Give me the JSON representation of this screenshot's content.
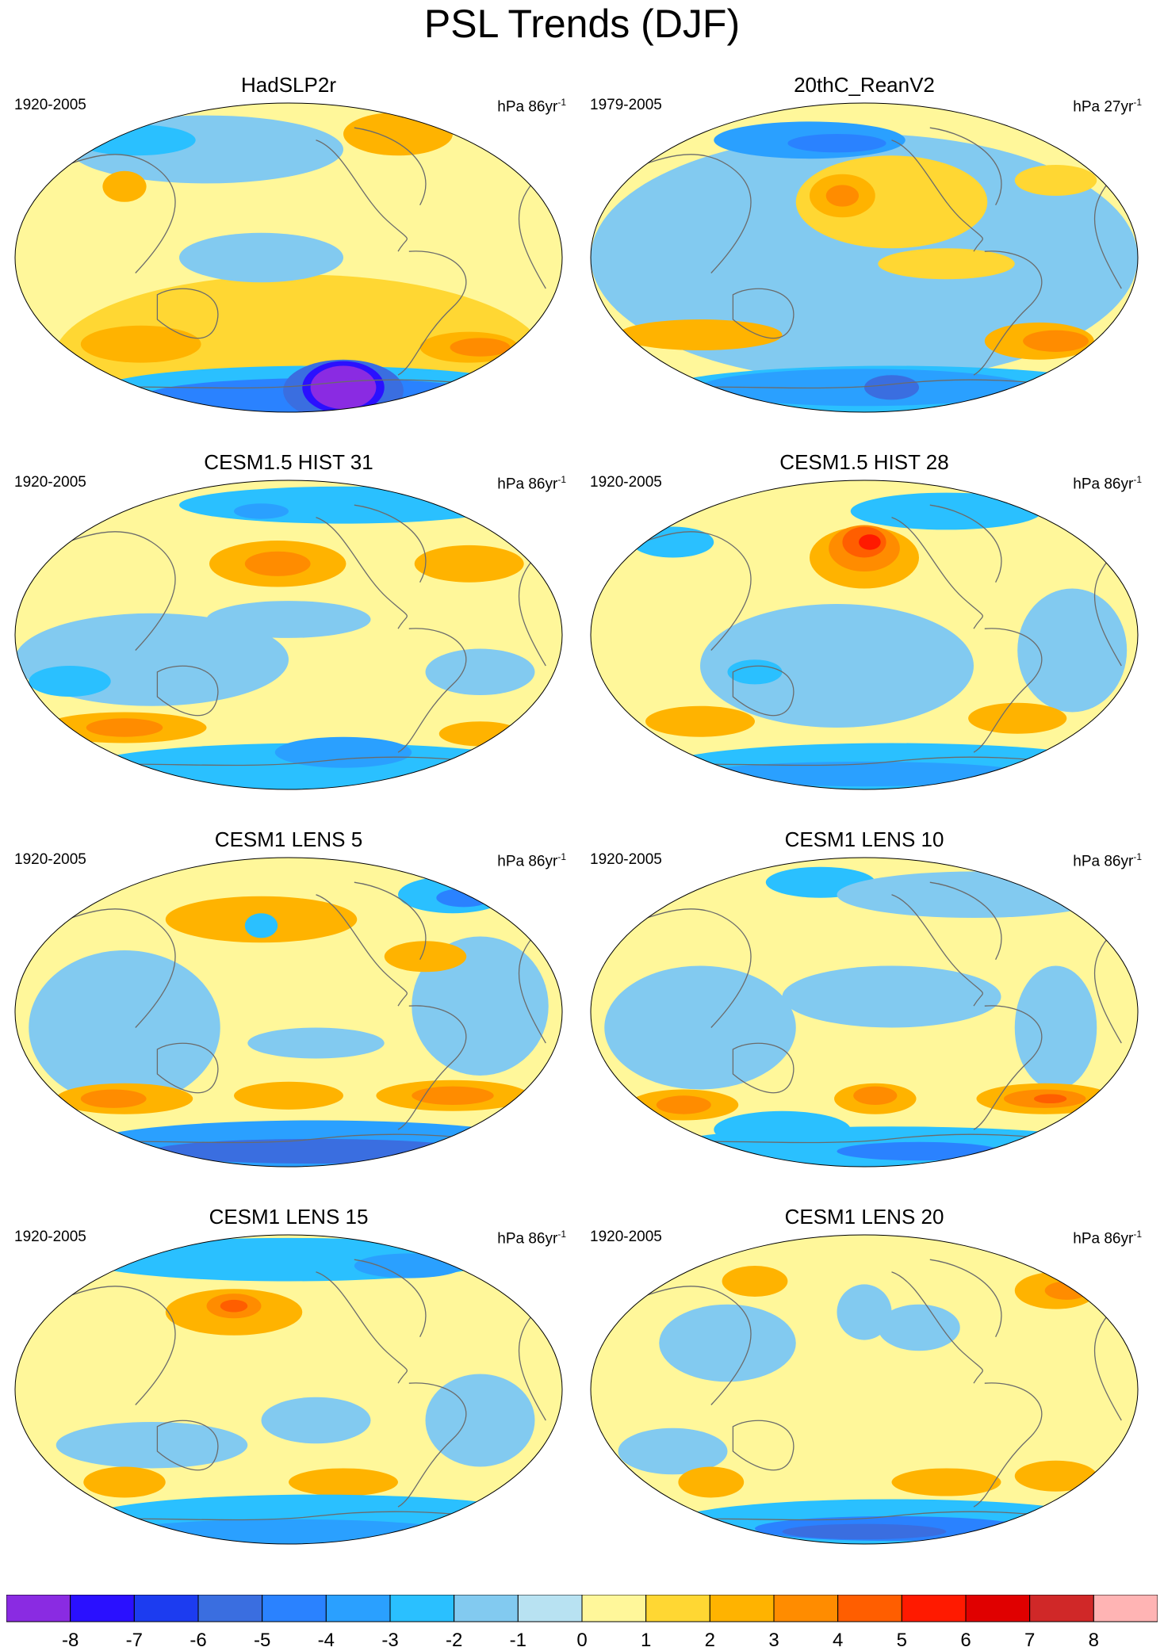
{
  "title": "PSL Trends (DJF)",
  "panels": [
    {
      "title": "HadSLP2r",
      "years": "1920-2005",
      "units": "hPa 86yr",
      "exp": "-1",
      "blobs": [
        [
          "1",
          0.52,
          0.83,
          0.9,
          0.55
        ],
        [
          "3",
          0.22,
          0.78,
          0.16,
          0.08
        ],
        [
          "2",
          0.23,
          0.78,
          0.22,
          0.12
        ],
        [
          "2",
          0.83,
          0.79,
          0.18,
          0.1
        ],
        [
          "3",
          0.85,
          0.79,
          0.11,
          0.06
        ],
        [
          "2",
          0.7,
          0.1,
          0.2,
          0.14
        ],
        [
          "-2",
          0.55,
          0.93,
          0.8,
          0.16
        ],
        [
          "-4",
          0.56,
          0.95,
          0.65,
          0.12
        ],
        [
          "-5",
          0.6,
          0.93,
          0.22,
          0.2
        ],
        [
          "-7",
          0.6,
          0.92,
          0.15,
          0.17
        ],
        [
          "-8",
          0.6,
          0.92,
          0.12,
          0.14
        ],
        [
          "-1",
          0.35,
          0.15,
          0.5,
          0.22
        ],
        [
          "-2",
          0.22,
          0.12,
          0.22,
          0.1
        ],
        [
          "-1",
          0.45,
          0.5,
          0.3,
          0.16
        ],
        [
          "2",
          0.2,
          0.27,
          0.08,
          0.1
        ]
      ]
    },
    {
      "title": "20thC_ReanV2",
      "years": "1979-2005",
      "units": "hPa 27yr",
      "exp": "-1",
      "blobs": [
        [
          "-1",
          0.5,
          0.5,
          1.0,
          0.8
        ],
        [
          "1",
          0.55,
          0.32,
          0.35,
          0.3
        ],
        [
          "2",
          0.46,
          0.3,
          0.12,
          0.14
        ],
        [
          "3",
          0.46,
          0.3,
          0.06,
          0.07
        ],
        [
          "2",
          0.2,
          0.75,
          0.3,
          0.1
        ],
        [
          "2",
          0.82,
          0.77,
          0.2,
          0.12
        ],
        [
          "3",
          0.85,
          0.77,
          0.12,
          0.07
        ],
        [
          "-2",
          0.55,
          0.93,
          0.85,
          0.16
        ],
        [
          "-3",
          0.5,
          0.92,
          0.6,
          0.12
        ],
        [
          "-5",
          0.55,
          0.92,
          0.1,
          0.08
        ],
        [
          "-3",
          0.4,
          0.12,
          0.35,
          0.12
        ],
        [
          "-4",
          0.45,
          0.13,
          0.18,
          0.06
        ],
        [
          "1",
          0.85,
          0.25,
          0.15,
          0.1
        ],
        [
          "1",
          0.65,
          0.52,
          0.25,
          0.1
        ]
      ]
    },
    {
      "title": "CESM1.5 HIST 31",
      "years": "1920-2005",
      "units": "hPa 86yr",
      "exp": "-1",
      "blobs": [
        [
          "-1",
          0.25,
          0.58,
          0.5,
          0.3
        ],
        [
          "-2",
          0.1,
          0.65,
          0.15,
          0.1
        ],
        [
          "-1",
          0.85,
          0.62,
          0.2,
          0.15
        ],
        [
          "2",
          0.48,
          0.27,
          0.25,
          0.15
        ],
        [
          "3",
          0.48,
          0.27,
          0.12,
          0.08
        ],
        [
          "2",
          0.83,
          0.27,
          0.2,
          0.12
        ],
        [
          "2",
          0.2,
          0.8,
          0.3,
          0.1
        ],
        [
          "3",
          0.2,
          0.8,
          0.14,
          0.06
        ],
        [
          "2",
          0.85,
          0.82,
          0.15,
          0.08
        ],
        [
          "-2",
          0.55,
          0.93,
          0.85,
          0.16
        ],
        [
          "-3",
          0.6,
          0.88,
          0.25,
          0.1
        ],
        [
          "-2",
          0.6,
          0.08,
          0.6,
          0.12
        ],
        [
          "-3",
          0.45,
          0.1,
          0.1,
          0.05
        ],
        [
          "-1",
          0.5,
          0.45,
          0.3,
          0.12
        ]
      ]
    },
    {
      "title": "CESM1.5 HIST 28",
      "years": "1920-2005",
      "units": "hPa 86yr",
      "exp": "-1",
      "blobs": [
        [
          "-1",
          0.45,
          0.6,
          0.5,
          0.4
        ],
        [
          "-1",
          0.88,
          0.55,
          0.2,
          0.4
        ],
        [
          "2",
          0.5,
          0.25,
          0.2,
          0.2
        ],
        [
          "3",
          0.5,
          0.22,
          0.13,
          0.15
        ],
        [
          "4",
          0.5,
          0.2,
          0.08,
          0.1
        ],
        [
          "5",
          0.51,
          0.2,
          0.04,
          0.05
        ],
        [
          "2",
          0.2,
          0.78,
          0.2,
          0.1
        ],
        [
          "2",
          0.78,
          0.77,
          0.18,
          0.1
        ],
        [
          "-2",
          0.55,
          0.93,
          0.85,
          0.16
        ],
        [
          "-3",
          0.5,
          0.95,
          0.6,
          0.08
        ],
        [
          "-2",
          0.65,
          0.1,
          0.35,
          0.12
        ],
        [
          "-2",
          0.15,
          0.2,
          0.15,
          0.1
        ],
        [
          "-2",
          0.3,
          0.62,
          0.1,
          0.08
        ]
      ]
    },
    {
      "title": "CESM1 LENS 5",
      "years": "1920-2005",
      "units": "hPa 86yr",
      "exp": "-1",
      "blobs": [
        [
          "-1",
          0.2,
          0.55,
          0.35,
          0.5
        ],
        [
          "-1",
          0.85,
          0.48,
          0.25,
          0.45
        ],
        [
          "-1",
          0.55,
          0.6,
          0.25,
          0.1
        ],
        [
          "2",
          0.45,
          0.2,
          0.35,
          0.15
        ],
        [
          "2",
          0.75,
          0.32,
          0.15,
          0.1
        ],
        [
          "2",
          0.2,
          0.78,
          0.25,
          0.1
        ],
        [
          "3",
          0.18,
          0.78,
          0.12,
          0.06
        ],
        [
          "2",
          0.5,
          0.77,
          0.2,
          0.09
        ],
        [
          "2",
          0.8,
          0.77,
          0.28,
          0.1
        ],
        [
          "3",
          0.8,
          0.77,
          0.15,
          0.06
        ],
        [
          "-3",
          0.55,
          0.93,
          0.85,
          0.16
        ],
        [
          "-5",
          0.55,
          0.95,
          0.6,
          0.08
        ],
        [
          "-2",
          0.8,
          0.12,
          0.2,
          0.12
        ],
        [
          "-4",
          0.82,
          0.13,
          0.1,
          0.06
        ],
        [
          "-2",
          0.45,
          0.22,
          0.06,
          0.08
        ]
      ]
    },
    {
      "title": "CESM1 LENS 10",
      "years": "1920-2005",
      "units": "hPa 86yr",
      "exp": "-1",
      "blobs": [
        [
          "-1",
          0.2,
          0.55,
          0.35,
          0.4
        ],
        [
          "-1",
          0.55,
          0.45,
          0.4,
          0.2
        ],
        [
          "-1",
          0.85,
          0.55,
          0.15,
          0.4
        ],
        [
          "-2",
          0.35,
          0.88,
          0.25,
          0.12
        ],
        [
          "2",
          0.17,
          0.8,
          0.2,
          0.1
        ],
        [
          "3",
          0.17,
          0.8,
          0.1,
          0.06
        ],
        [
          "2",
          0.52,
          0.78,
          0.15,
          0.1
        ],
        [
          "3",
          0.52,
          0.77,
          0.08,
          0.06
        ],
        [
          "2",
          0.83,
          0.78,
          0.25,
          0.1
        ],
        [
          "3",
          0.83,
          0.78,
          0.15,
          0.06
        ],
        [
          "4",
          0.84,
          0.78,
          0.06,
          0.03
        ],
        [
          "-2",
          0.55,
          0.94,
          0.85,
          0.14
        ],
        [
          "-4",
          0.6,
          0.95,
          0.3,
          0.06
        ],
        [
          "-2",
          0.42,
          0.08,
          0.2,
          0.1
        ],
        [
          "-1",
          0.7,
          0.12,
          0.5,
          0.15
        ]
      ]
    },
    {
      "title": "CESM1 LENS 15",
      "years": "1920-2005",
      "units": "hPa 86yr",
      "exp": "-1",
      "blobs": [
        [
          "-1",
          0.25,
          0.68,
          0.35,
          0.15
        ],
        [
          "-1",
          0.55,
          0.6,
          0.2,
          0.15
        ],
        [
          "-1",
          0.85,
          0.6,
          0.2,
          0.3
        ],
        [
          "2",
          0.4,
          0.25,
          0.25,
          0.15
        ],
        [
          "3",
          0.4,
          0.23,
          0.1,
          0.08
        ],
        [
          "4",
          0.4,
          0.23,
          0.05,
          0.04
        ],
        [
          "2",
          0.2,
          0.8,
          0.15,
          0.1
        ],
        [
          "2",
          0.6,
          0.8,
          0.2,
          0.09
        ],
        [
          "-2",
          0.55,
          0.92,
          0.85,
          0.16
        ],
        [
          "-3",
          0.5,
          0.96,
          0.6,
          0.08
        ],
        [
          "-2",
          0.5,
          0.08,
          0.75,
          0.14
        ],
        [
          "-3",
          0.72,
          0.1,
          0.2,
          0.08
        ]
      ]
    },
    {
      "title": "CESM1 LENS 20",
      "years": "1920-2005",
      "units": "hPa 86yr",
      "exp": "-1",
      "blobs": [
        [
          "-1",
          0.25,
          0.35,
          0.25,
          0.25
        ],
        [
          "-1",
          0.5,
          0.25,
          0.1,
          0.18
        ],
        [
          "-1",
          0.6,
          0.3,
          0.15,
          0.15
        ],
        [
          "-1",
          0.15,
          0.7,
          0.2,
          0.15
        ],
        [
          "2",
          0.3,
          0.15,
          0.12,
          0.1
        ],
        [
          "2",
          0.85,
          0.18,
          0.15,
          0.12
        ],
        [
          "3",
          0.87,
          0.18,
          0.08,
          0.06
        ],
        [
          "2",
          0.22,
          0.8,
          0.12,
          0.1
        ],
        [
          "2",
          0.65,
          0.8,
          0.2,
          0.09
        ],
        [
          "2",
          0.85,
          0.78,
          0.15,
          0.1
        ],
        [
          "-2",
          0.55,
          0.93,
          0.8,
          0.15
        ],
        [
          "-4",
          0.55,
          0.95,
          0.5,
          0.08
        ],
        [
          "-5",
          0.5,
          0.96,
          0.3,
          0.05
        ]
      ]
    }
  ],
  "colorbar": {
    "colors": [
      "#8a2be2",
      "#2a10ff",
      "#1c3cf0",
      "#3a6ee0",
      "#2a82ff",
      "#2aa0ff",
      "#2ac0ff",
      "#82caf0",
      "#b8e2f2",
      "#fff79a",
      "#ffd733",
      "#ffb300",
      "#ff8c00",
      "#ff5e00",
      "#ff1a00",
      "#e00000",
      "#d02828",
      "#ffb4b4"
    ],
    "labels": [
      "-8",
      "-7",
      "-6",
      "-5",
      "-4",
      "-3",
      "-2",
      "-1",
      "0",
      "1",
      "2",
      "3",
      "4",
      "5",
      "6",
      "7",
      "8"
    ]
  }
}
